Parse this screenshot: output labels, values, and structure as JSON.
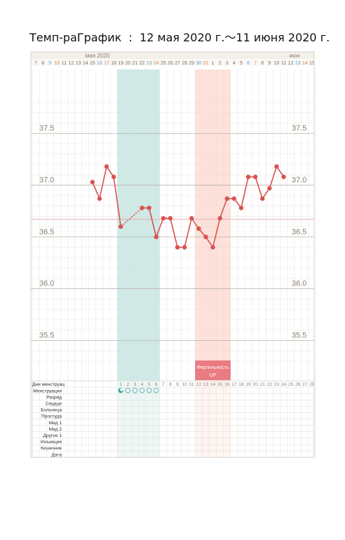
{
  "title": "Темп-раГрафик  :  12 мая 2020 г.～11 июня 2020 г.",
  "months": [
    {
      "label": "мая 2020",
      "anchor": "2020-05-14"
    },
    {
      "label": "июн",
      "anchor": "2020-06-11"
    }
  ],
  "colors": {
    "line": "#d9534f",
    "weekend": "#5ba0d0",
    "sunday": "#e0884a",
    "menstruation_band": "#cfe9e6",
    "fertility_band": "#fde1da",
    "fertility_badge": "#e97b82",
    "coverline": "#e8aab0",
    "grid": "#b9b2a8"
  },
  "chart_data": {
    "type": "line",
    "x_start": "2020-05-07",
    "x_end": "2020-06-15",
    "ylim": [
      35.3,
      37.82
    ],
    "y_major": [
      35.5,
      36.0,
      36.5,
      37.0,
      37.5
    ],
    "day_labels": [
      "7",
      "8",
      "9",
      "10",
      "11",
      "12",
      "13",
      "14",
      "15",
      "16",
      "17",
      "18",
      "19",
      "20",
      "21",
      "22",
      "23",
      "24",
      "25",
      "26",
      "27",
      "28",
      "29",
      "30",
      "31",
      "1",
      "2",
      "3",
      "4",
      "5",
      "6",
      "7",
      "8",
      "9",
      "10",
      "11",
      "12",
      "13",
      "14",
      "15"
    ],
    "temperatures": [
      {
        "date": "2020-05-15",
        "value": 37.03
      },
      {
        "date": "2020-05-16",
        "value": 36.87
      },
      {
        "date": "2020-05-17",
        "value": 37.18
      },
      {
        "date": "2020-05-18",
        "value": 37.08
      },
      {
        "date": "2020-05-19",
        "value": 36.6
      },
      {
        "date": "2020-05-22",
        "value": 36.78
      },
      {
        "date": "2020-05-23",
        "value": 36.78
      },
      {
        "date": "2020-05-24",
        "value": 36.5
      },
      {
        "date": "2020-05-25",
        "value": 36.68
      },
      {
        "date": "2020-05-26",
        "value": 36.68
      },
      {
        "date": "2020-05-27",
        "value": 36.4
      },
      {
        "date": "2020-05-28",
        "value": 36.4
      },
      {
        "date": "2020-05-29",
        "value": 36.68
      },
      {
        "date": "2020-05-30",
        "value": 36.58
      },
      {
        "date": "2020-05-31",
        "value": 36.5
      },
      {
        "date": "2020-06-01",
        "value": 36.4
      },
      {
        "date": "2020-06-02",
        "value": 36.68
      },
      {
        "date": "2020-06-03",
        "value": 36.87
      },
      {
        "date": "2020-06-04",
        "value": 36.87
      },
      {
        "date": "2020-06-05",
        "value": 36.78
      },
      {
        "date": "2020-06-06",
        "value": 37.08
      },
      {
        "date": "2020-06-07",
        "value": 37.08
      },
      {
        "date": "2020-06-08",
        "value": 36.87
      },
      {
        "date": "2020-06-09",
        "value": 36.97
      },
      {
        "date": "2020-06-10",
        "value": 37.18
      },
      {
        "date": "2020-06-11",
        "value": 37.08
      }
    ],
    "gap_dotted": [
      [
        "2020-05-19",
        "2020-05-22"
      ]
    ],
    "coverline": 36.67,
    "menstruation_range": [
      "2020-05-19",
      "2020-05-24"
    ],
    "fertility_range": [
      "2020-05-30",
      "2020-06-03"
    ],
    "fertility_label": "Фертильность UP",
    "grid": true
  },
  "table": {
    "cycle_row_label": "Дни менструац",
    "cycle_start": "2020-05-19",
    "cycle_days": [
      "1",
      "2",
      "3",
      "4",
      "5",
      "6",
      "7",
      "8",
      "9",
      "10",
      "11",
      "12",
      "13",
      "14",
      "15",
      "16",
      "17",
      "18",
      "19",
      "20",
      "21",
      "22",
      "23",
      "24",
      "25",
      "26",
      "27",
      "28"
    ],
    "rows": [
      "Менструация",
      "Разряд",
      "Сердце",
      "Больница",
      "Простуда",
      "Мед 1",
      "Мед 2",
      "Другое 1",
      "Инъекция",
      "Кишечник",
      "Дата"
    ],
    "menstruation_days": [
      "2020-05-19",
      "2020-05-20",
      "2020-05-21",
      "2020-05-22",
      "2020-05-23",
      "2020-05-24"
    ]
  }
}
